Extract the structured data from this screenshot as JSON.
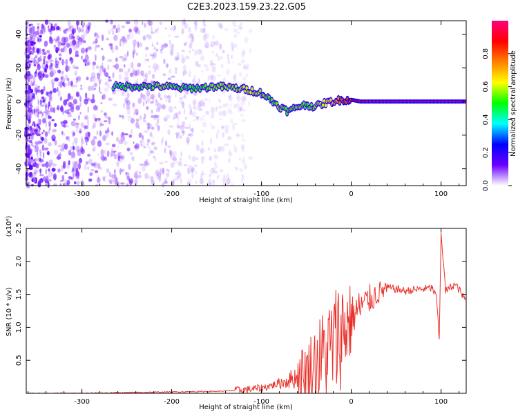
{
  "title": "C2E3.2023.159.23.22.G05",
  "chart_data": [
    {
      "type": "heatmap",
      "title": "C2E3.2023.159.23.22.G05",
      "xlabel": "Height of straight line (km)",
      "ylabel": "Frequency (Hz)",
      "xlim": [
        -362,
        128
      ],
      "ylim": [
        -50,
        48
      ],
      "x_ticks": [
        -300,
        -200,
        -100,
        0,
        100
      ],
      "x_tick_labels": [
        "-300",
        "-200",
        "-100",
        "0",
        "100"
      ],
      "y_ticks": [
        -40,
        -20,
        0,
        20,
        40
      ],
      "y_tick_labels": [
        "-40",
        "-20",
        "0",
        "20",
        "40"
      ],
      "colorbar": {
        "label": "Normalized spectral amplitude",
        "range": [
          0,
          1
        ],
        "ticks": [
          0,
          0.2,
          0.4,
          0.6,
          0.8
        ],
        "tick_labels": [
          "0.0",
          "0.2",
          "0.4",
          "0.6",
          "0.8"
        ],
        "colormap": [
          "#ffffff",
          "#6a00ff",
          "#0000ff",
          "#00ffff",
          "#00ff00",
          "#ffff00",
          "#ff8000",
          "#ff0000",
          "#ff0080"
        ]
      },
      "ridge": [
        {
          "x": -265,
          "y": 9,
          "amp": 0.45
        },
        {
          "x": -250,
          "y": 9,
          "amp": 0.5
        },
        {
          "x": -230,
          "y": 9,
          "amp": 0.5
        },
        {
          "x": -210,
          "y": 9,
          "amp": 0.55
        },
        {
          "x": -190,
          "y": 8,
          "amp": 0.5
        },
        {
          "x": -170,
          "y": 8,
          "amp": 0.5
        },
        {
          "x": -150,
          "y": 9,
          "amp": 0.55
        },
        {
          "x": -130,
          "y": 8,
          "amp": 0.55
        },
        {
          "x": -115,
          "y": 7,
          "amp": 0.6
        },
        {
          "x": -100,
          "y": 5,
          "amp": 0.55
        },
        {
          "x": -90,
          "y": 1,
          "amp": 0.5
        },
        {
          "x": -80,
          "y": -3,
          "amp": 0.55
        },
        {
          "x": -70,
          "y": -6,
          "amp": 0.5
        },
        {
          "x": -60,
          "y": -3,
          "amp": 0.55
        },
        {
          "x": -50,
          "y": -2,
          "amp": 0.5
        },
        {
          "x": -40,
          "y": -3,
          "amp": 0.55
        },
        {
          "x": -30,
          "y": -1,
          "amp": 0.6
        },
        {
          "x": -20,
          "y": 0,
          "amp": 0.7
        },
        {
          "x": -10,
          "y": 1,
          "amp": 0.8
        },
        {
          "x": 0,
          "y": 1,
          "amp": 0.85
        },
        {
          "x": 10,
          "y": 0,
          "amp": 0.95
        },
        {
          "x": 30,
          "y": 0,
          "amp": 1.0
        },
        {
          "x": 60,
          "y": 0,
          "amp": 1.0
        },
        {
          "x": 90,
          "y": 0,
          "amp": 1.0
        },
        {
          "x": 128,
          "y": 0,
          "amp": 1.0
        }
      ]
    },
    {
      "type": "line",
      "xlabel": "Height of straight line (km)",
      "ylabel": "SNR (10 * v/v)",
      "y_multiplier": "(x10⁴)",
      "xlim": [
        -362,
        128
      ],
      "ylim": [
        0,
        2.5
      ],
      "x_ticks": [
        -300,
        -200,
        -100,
        0,
        100
      ],
      "x_tick_labels": [
        "-300",
        "-200",
        "-100",
        "0",
        "100"
      ],
      "y_ticks": [
        0.5,
        1.0,
        1.5,
        2.0,
        2.5
      ],
      "y_tick_labels": [
        "0.5",
        "1.0",
        "1.5",
        "2.0",
        "2.5"
      ],
      "series": [
        {
          "color": "#e8302a",
          "x": [
            -362,
            -300,
            -250,
            -200,
            -150,
            -120,
            -100,
            -80,
            -70,
            -60,
            -50,
            -40,
            -30,
            -20,
            -10,
            0,
            10,
            20,
            30,
            40,
            50,
            60,
            70,
            80,
            90,
            95,
            98,
            100,
            105,
            110,
            115,
            120,
            125,
            128
          ],
          "y": [
            0.0,
            0.0,
            0.01,
            0.02,
            0.03,
            0.05,
            0.08,
            0.15,
            0.2,
            0.25,
            0.3,
            0.45,
            0.6,
            0.75,
            0.95,
            1.15,
            1.3,
            1.42,
            1.52,
            1.6,
            1.58,
            1.55,
            1.57,
            1.58,
            1.6,
            1.45,
            0.8,
            2.45,
            1.55,
            1.6,
            1.65,
            1.58,
            1.45,
            1.42
          ]
        }
      ]
    }
  ]
}
